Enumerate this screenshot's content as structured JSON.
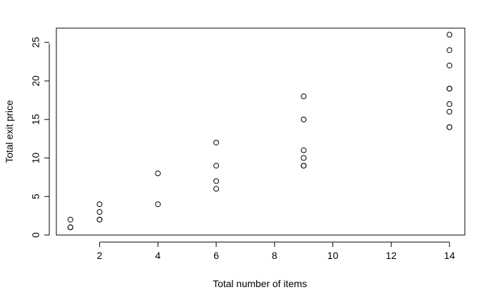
{
  "chart_data": {
    "type": "scatter",
    "title": "",
    "xlabel": "Total number of items",
    "ylabel": "Total exit price",
    "xlim": [
      0.5,
      14.8
    ],
    "ylim": [
      0,
      27
    ],
    "x_ticks": [
      2,
      4,
      6,
      8,
      10,
      12,
      14
    ],
    "y_ticks": [
      0,
      5,
      10,
      15,
      20,
      25
    ],
    "grid": false,
    "legend": "none",
    "marker": "open-circle",
    "x": [
      1,
      1,
      1,
      2,
      2,
      2,
      2,
      4,
      4,
      6,
      6,
      6,
      6,
      9,
      9,
      9,
      9,
      9,
      9,
      14,
      14,
      14,
      14,
      14,
      14,
      14,
      14,
      14
    ],
    "y": [
      1,
      1,
      2,
      2,
      2,
      3,
      4,
      4,
      8,
      6,
      7,
      9,
      12,
      9,
      9,
      10,
      11,
      15,
      18,
      14,
      14,
      16,
      17,
      19,
      19,
      22,
      24,
      26
    ]
  }
}
